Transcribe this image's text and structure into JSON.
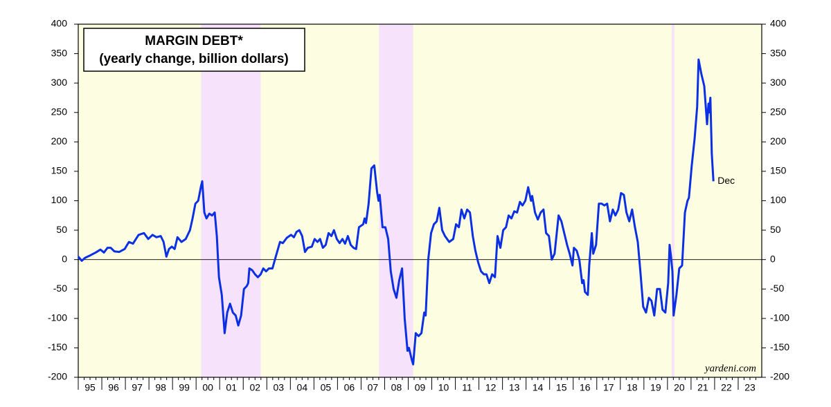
{
  "chart_data": {
    "type": "line",
    "title": [
      "MARGIN DEBT*",
      "(yearly change, billion dollars)"
    ],
    "annotation": "Dec",
    "source": "yardeni.com",
    "background": "#fdfde2",
    "shaded_periods": [
      {
        "start": 2000.21,
        "end": 2002.74,
        "color": "#f6e2fa"
      },
      {
        "start": 2007.76,
        "end": 2009.21,
        "color": "#f6e2fa"
      },
      {
        "start": 2020.18,
        "end": 2020.29,
        "color": "#f6e2fa"
      }
    ],
    "x": [
      1995.0,
      1995.15,
      1995.29,
      1995.5,
      1995.74,
      1995.94,
      1996.09,
      1996.24,
      1996.38,
      1996.53,
      1996.74,
      1996.97,
      1997.15,
      1997.32,
      1997.56,
      1997.79,
      1997.97,
      1998.15,
      1998.32,
      1998.5,
      1998.62,
      1998.74,
      1998.85,
      1998.97,
      1999.09,
      1999.21,
      1999.38,
      1999.56,
      1999.74,
      1999.85,
      1999.97,
      2000.09,
      2000.21,
      2000.26,
      2000.35,
      2000.44,
      2000.56,
      2000.68,
      2000.79,
      2000.88,
      2000.97,
      2001.09,
      2001.21,
      2001.32,
      2001.44,
      2001.56,
      2001.68,
      2001.79,
      2001.91,
      2002.03,
      2002.15,
      2002.21,
      2002.26,
      2002.38,
      2002.5,
      2002.62,
      2002.74,
      2002.85,
      2002.97,
      2003.09,
      2003.24,
      2003.38,
      2003.56,
      2003.68,
      2003.85,
      2004.03,
      2004.15,
      2004.26,
      2004.38,
      2004.5,
      2004.62,
      2004.74,
      2004.91,
      2005.03,
      2005.15,
      2005.26,
      2005.38,
      2005.5,
      2005.62,
      2005.74,
      2005.85,
      2005.97,
      2006.09,
      2006.21,
      2006.32,
      2006.44,
      2006.56,
      2006.68,
      2006.79,
      2006.91,
      2007.09,
      2007.15,
      2007.21,
      2007.32,
      2007.44,
      2007.56,
      2007.68,
      2007.74,
      2007.79,
      2007.91,
      2008.03,
      2008.15,
      2008.26,
      2008.38,
      2008.5,
      2008.62,
      2008.74,
      2008.85,
      2008.97,
      2009.03,
      2009.15,
      2009.21,
      2009.32,
      2009.44,
      2009.56,
      2009.68,
      2009.74,
      2009.85,
      2009.97,
      2010.09,
      2010.21,
      2010.32,
      2010.44,
      2010.56,
      2010.74,
      2010.91,
      2011.03,
      2011.15,
      2011.26,
      2011.38,
      2011.5,
      2011.62,
      2011.74,
      2011.85,
      2011.97,
      2012.09,
      2012.21,
      2012.32,
      2012.44,
      2012.56,
      2012.68,
      2012.79,
      2012.91,
      2013.03,
      2013.15,
      2013.26,
      2013.38,
      2013.5,
      2013.62,
      2013.74,
      2013.85,
      2013.97,
      2014.09,
      2014.21,
      2014.26,
      2014.38,
      2014.5,
      2014.62,
      2014.74,
      2014.85,
      2014.97,
      2015.09,
      2015.21,
      2015.38,
      2015.5,
      2015.62,
      2015.74,
      2015.85,
      2015.97,
      2016.03,
      2016.15,
      2016.26,
      2016.38,
      2016.44,
      2016.5,
      2016.62,
      2016.68,
      2016.79,
      2016.85,
      2016.97,
      2017.09,
      2017.21,
      2017.32,
      2017.44,
      2017.56,
      2017.68,
      2017.79,
      2017.91,
      2018.03,
      2018.15,
      2018.26,
      2018.38,
      2018.5,
      2018.62,
      2018.74,
      2018.85,
      2018.97,
      2019.09,
      2019.21,
      2019.32,
      2019.44,
      2019.56,
      2019.68,
      2019.79,
      2019.91,
      2020.03,
      2020.09,
      2020.15,
      2020.21,
      2020.26,
      2020.38,
      2020.5,
      2020.62,
      2020.74,
      2020.85,
      2020.91,
      2021.03,
      2021.15,
      2021.26,
      2021.32,
      2021.44,
      2021.56,
      2021.68,
      2021.74,
      2021.76,
      2021.82,
      2021.88,
      2021.95
    ],
    "series": [
      {
        "color": "#0b2fe3",
        "values": [
          5,
          -2,
          3,
          7,
          12,
          17,
          12,
          20,
          20,
          14,
          13,
          18,
          30,
          27,
          42,
          45,
          35,
          42,
          38,
          40,
          30,
          5,
          18,
          22,
          18,
          38,
          30,
          35,
          50,
          70,
          95,
          100,
          125,
          133,
          80,
          70,
          78,
          75,
          80,
          40,
          -30,
          -60,
          -125,
          -90,
          -75,
          -90,
          -95,
          -112,
          -95,
          -50,
          -45,
          -40,
          -15,
          -18,
          -25,
          -30,
          -25,
          -15,
          -20,
          -15,
          -15,
          5,
          30,
          28,
          37,
          42,
          38,
          47,
          50,
          40,
          13,
          20,
          22,
          35,
          30,
          35,
          20,
          25,
          45,
          40,
          50,
          35,
          28,
          35,
          27,
          40,
          25,
          20,
          18,
          55,
          60,
          70,
          62,
          95,
          155,
          160,
          115,
          100,
          110,
          55,
          55,
          35,
          -20,
          -50,
          -65,
          -35,
          -15,
          -100,
          -155,
          -150,
          -170,
          -178,
          -125,
          -130,
          -125,
          -90,
          -95,
          0,
          45,
          60,
          65,
          88,
          50,
          40,
          30,
          35,
          60,
          55,
          85,
          70,
          85,
          80,
          40,
          15,
          -5,
          -20,
          -25,
          -25,
          -40,
          -25,
          -30,
          40,
          20,
          50,
          55,
          75,
          70,
          82,
          80,
          98,
          92,
          100,
          123,
          100,
          108,
          80,
          68,
          80,
          85,
          45,
          40,
          0,
          10,
          75,
          65,
          45,
          25,
          10,
          -10,
          20,
          15,
          0,
          -40,
          -35,
          -55,
          -60,
          -10,
          45,
          10,
          25,
          95,
          95,
          92,
          95,
          65,
          85,
          75,
          85,
          113,
          110,
          80,
          65,
          85,
          55,
          30,
          -20,
          -80,
          -90,
          -65,
          -70,
          -95,
          -50,
          -50,
          -85,
          -90,
          -40,
          25,
          5,
          -20,
          -95,
          -60,
          -15,
          -10,
          80,
          100,
          105,
          160,
          205,
          260,
          340,
          315,
          295,
          230,
          265,
          250,
          275,
          180,
          133
        ]
      }
    ],
    "xlim": [
      1995,
      2024
    ],
    "xticks": [
      {
        "value": 1995,
        "label": "95"
      },
      {
        "value": 1996,
        "label": "96"
      },
      {
        "value": 1997,
        "label": "97"
      },
      {
        "value": 1998,
        "label": "98"
      },
      {
        "value": 1999,
        "label": "99"
      },
      {
        "value": 2000,
        "label": "00"
      },
      {
        "value": 2001,
        "label": "01"
      },
      {
        "value": 2002,
        "label": "02"
      },
      {
        "value": 2003,
        "label": "03"
      },
      {
        "value": 2004,
        "label": "04"
      },
      {
        "value": 2005,
        "label": "05"
      },
      {
        "value": 2006,
        "label": "06"
      },
      {
        "value": 2007,
        "label": "07"
      },
      {
        "value": 2008,
        "label": "08"
      },
      {
        "value": 2009,
        "label": "09"
      },
      {
        "value": 2010,
        "label": "10"
      },
      {
        "value": 2011,
        "label": "11"
      },
      {
        "value": 2012,
        "label": "12"
      },
      {
        "value": 2013,
        "label": "13"
      },
      {
        "value": 2014,
        "label": "14"
      },
      {
        "value": 2015,
        "label": "15"
      },
      {
        "value": 2016,
        "label": "16"
      },
      {
        "value": 2017,
        "label": "17"
      },
      {
        "value": 2018,
        "label": "18"
      },
      {
        "value": 2019,
        "label": "19"
      },
      {
        "value": 2020,
        "label": "20"
      },
      {
        "value": 2021,
        "label": "21"
      },
      {
        "value": 2022,
        "label": "22"
      },
      {
        "value": 2023,
        "label": "23"
      }
    ],
    "ylim": [
      -200,
      400
    ],
    "yticks": [
      -200,
      -150,
      -100,
      -50,
      0,
      50,
      100,
      150,
      200,
      250,
      300,
      350,
      400
    ],
    "y2lim": [
      -200,
      400
    ],
    "y2ticks": [
      -200,
      -150,
      -100,
      -50,
      0,
      50,
      100,
      150,
      200,
      250,
      300,
      350,
      400
    ]
  }
}
